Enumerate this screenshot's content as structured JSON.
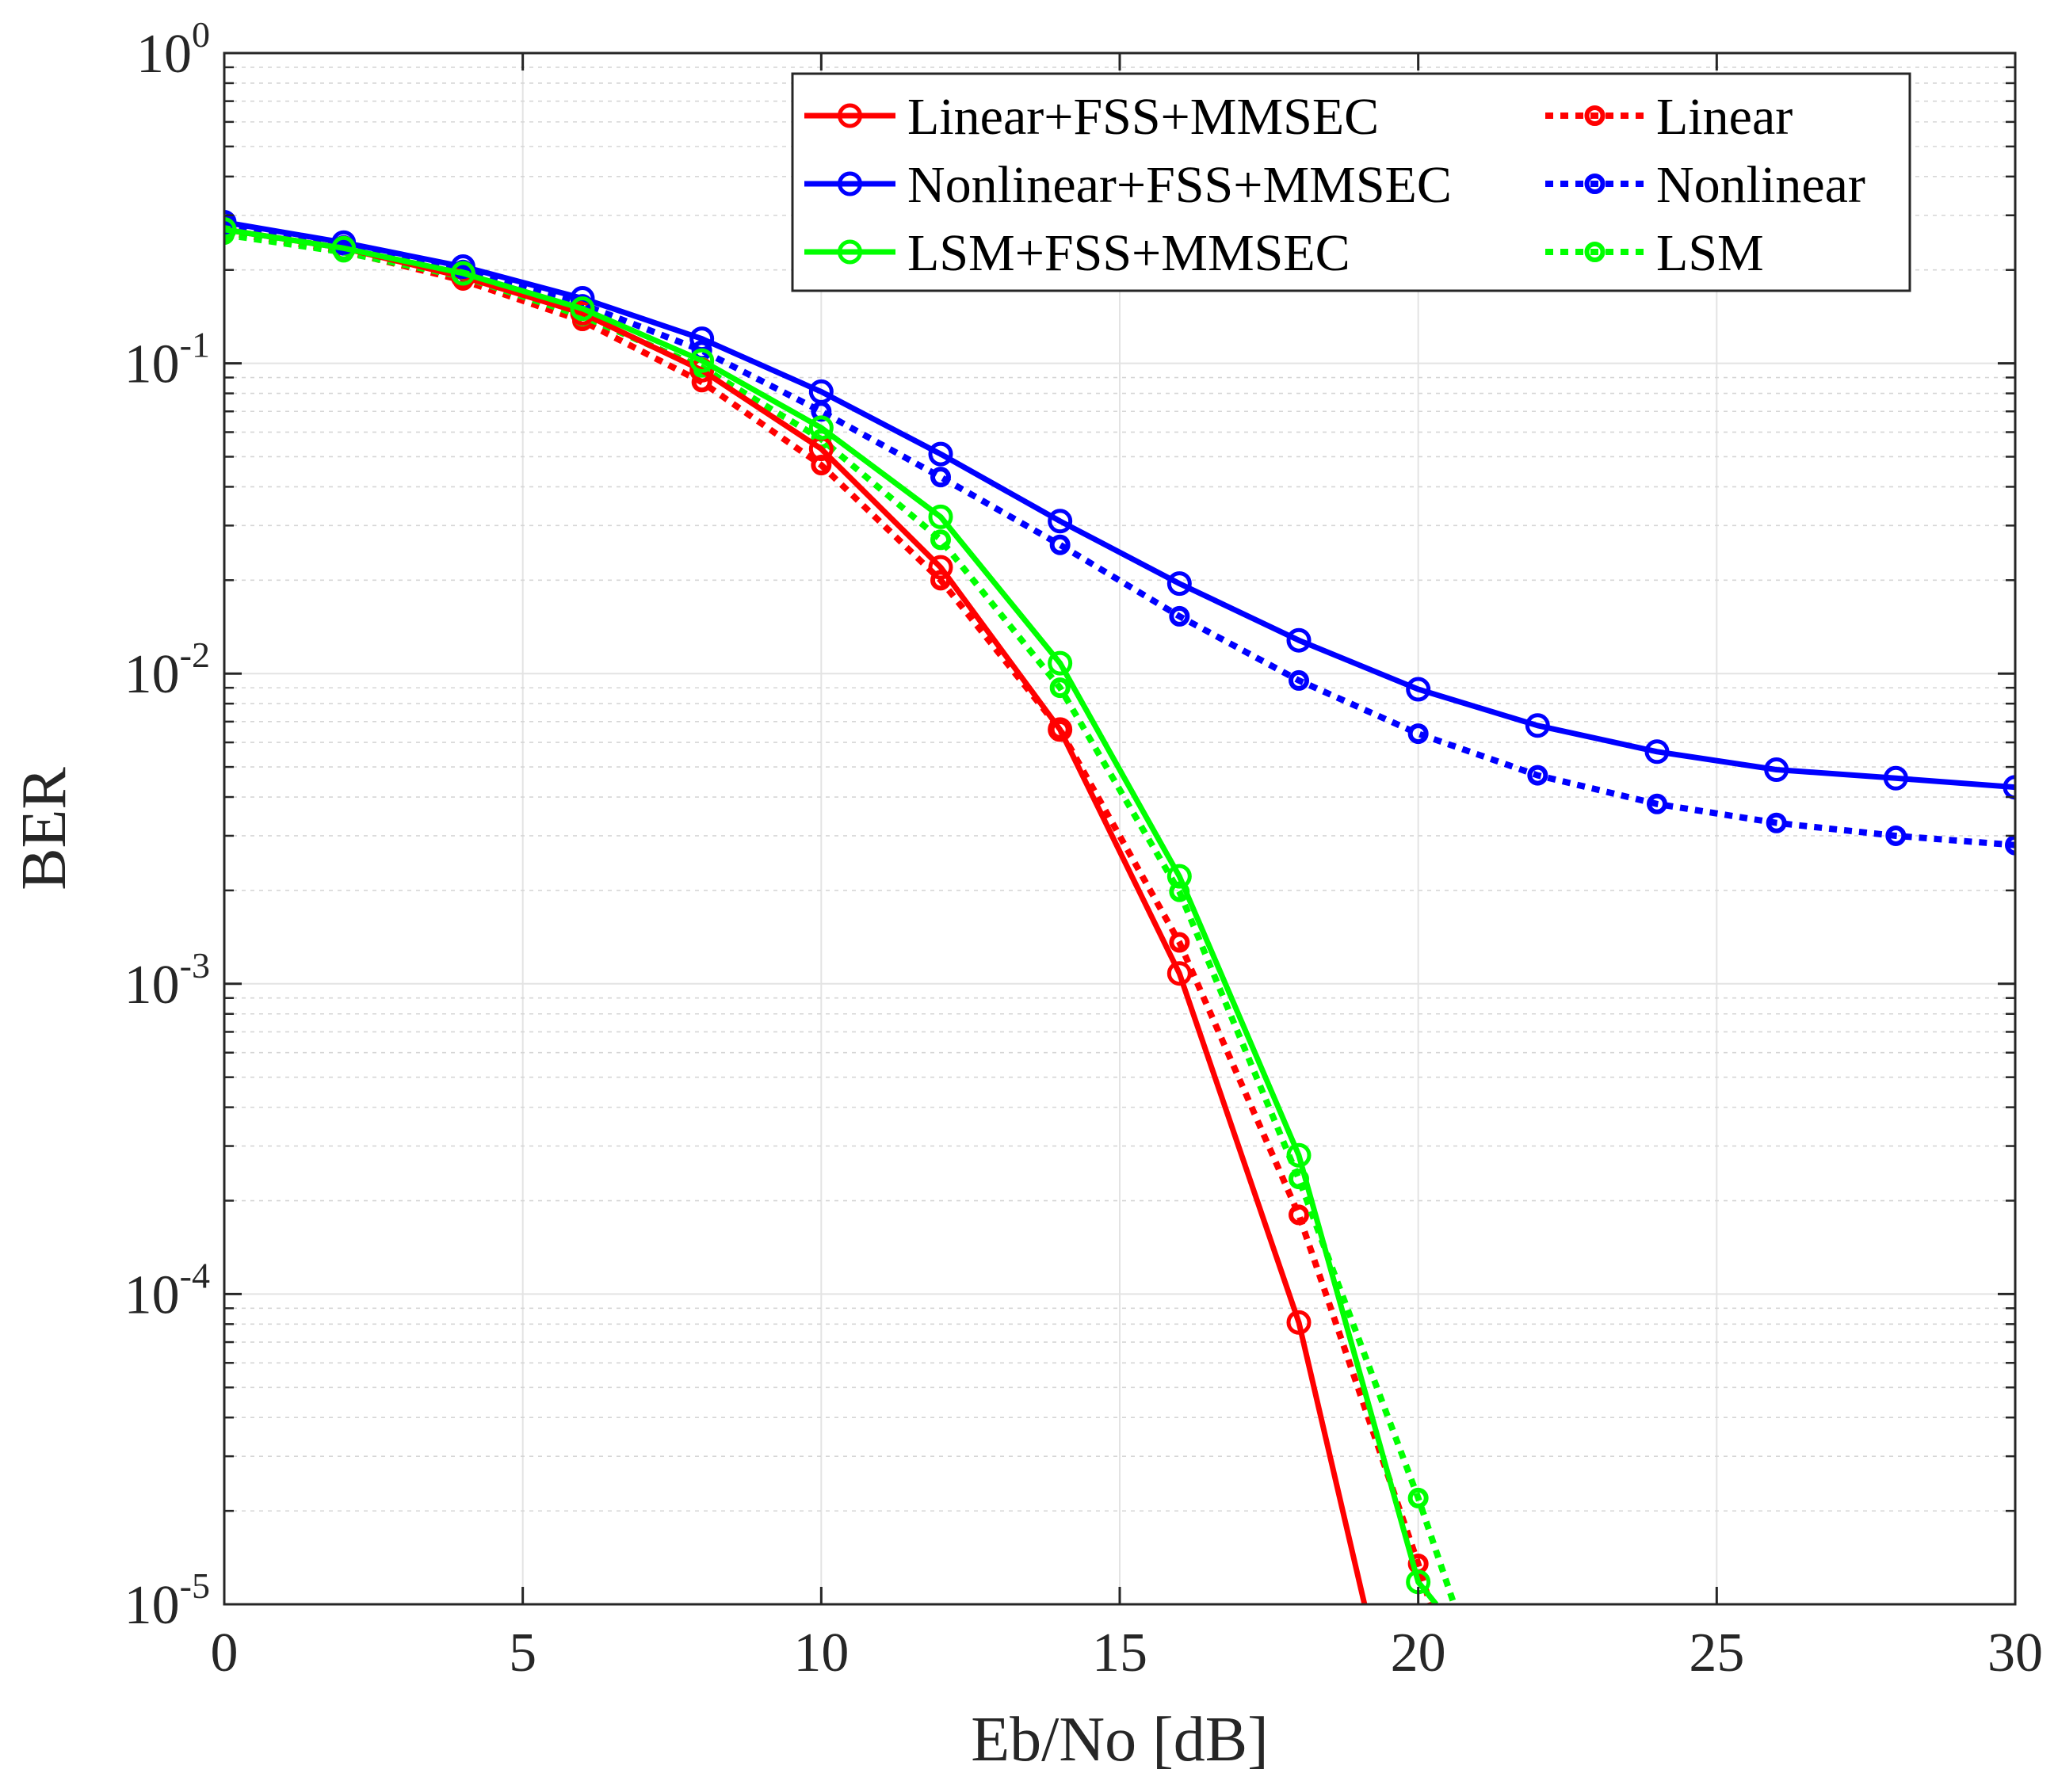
{
  "chart_data": {
    "type": "line",
    "xlabel": "Eb/No [dB]",
    "ylabel": "BER",
    "xlim": [
      0,
      30
    ],
    "ylim": [
      1e-05,
      1
    ],
    "yscale": "log",
    "grid": true,
    "legend_position": "top-right",
    "x_ticks": [
      {
        "value": 0,
        "label": "0"
      },
      {
        "value": 5,
        "label": "5"
      },
      {
        "value": 10,
        "label": "10"
      },
      {
        "value": 15,
        "label": "15"
      },
      {
        "value": 20,
        "label": "20"
      },
      {
        "value": 25,
        "label": "25"
      },
      {
        "value": 30,
        "label": "30"
      }
    ],
    "y_ticks": [
      {
        "value": 1,
        "base": "10",
        "exp": "0"
      },
      {
        "value": 0.1,
        "base": "10",
        "exp": "-1"
      },
      {
        "value": 0.01,
        "base": "10",
        "exp": "-2"
      },
      {
        "value": 0.001,
        "base": "10",
        "exp": "-3"
      },
      {
        "value": 0.0001,
        "base": "10",
        "exp": "-4"
      },
      {
        "value": 1e-05,
        "base": "10",
        "exp": "-5"
      }
    ],
    "series": [
      {
        "name": "Linear+FSS+MMSEC",
        "color": "#ff0000",
        "style": "solid",
        "x": [
          0,
          2,
          4,
          6,
          8,
          10,
          12,
          14,
          16,
          18,
          19.1
        ],
        "y": [
          0.27,
          0.235,
          0.19,
          0.145,
          0.095,
          0.053,
          0.022,
          0.0066,
          0.00108,
          8.1e-05,
          1e-05
        ]
      },
      {
        "name": "Nonlinear+FSS+MMSEC",
        "color": "#0000ff",
        "style": "solid",
        "x": [
          0,
          2,
          4,
          6,
          8,
          10,
          12,
          14,
          16,
          18,
          20,
          22,
          24,
          26,
          28,
          30
        ],
        "y": [
          0.285,
          0.245,
          0.205,
          0.162,
          0.12,
          0.081,
          0.051,
          0.031,
          0.0195,
          0.0128,
          0.0089,
          0.0068,
          0.0056,
          0.0049,
          0.0046,
          0.0043
        ]
      },
      {
        "name": "LSM+FSS+MMSEC",
        "color": "#00ff00",
        "style": "solid",
        "x": [
          0,
          2,
          4,
          6,
          8,
          10,
          12,
          14,
          16,
          18,
          20,
          20.3
        ],
        "y": [
          0.27,
          0.235,
          0.195,
          0.15,
          0.102,
          0.062,
          0.032,
          0.0108,
          0.00222,
          0.00028,
          1.18e-05,
          1e-05
        ]
      },
      {
        "name": "Linear",
        "color": "#ff0000",
        "style": "dotted",
        "x": [
          0,
          2,
          4,
          6,
          8,
          10,
          12,
          14,
          16,
          18,
          20,
          20.2
        ],
        "y": [
          0.265,
          0.23,
          0.185,
          0.137,
          0.087,
          0.047,
          0.02,
          0.0066,
          0.00136,
          0.00018,
          1.35e-05,
          1e-05
        ]
      },
      {
        "name": "Nonlinear",
        "color": "#0000ff",
        "style": "dotted",
        "x": [
          0,
          2,
          4,
          6,
          8,
          10,
          12,
          14,
          16,
          18,
          20,
          22,
          24,
          26,
          28,
          30
        ],
        "y": [
          0.28,
          0.24,
          0.2,
          0.155,
          0.11,
          0.07,
          0.043,
          0.026,
          0.0153,
          0.0095,
          0.0064,
          0.0047,
          0.0038,
          0.0033,
          0.003,
          0.0028
        ]
      },
      {
        "name": "LSM",
        "color": "#00ff00",
        "style": "dotted",
        "x": [
          0,
          2,
          4,
          6,
          8,
          10,
          12,
          14,
          16,
          18,
          20,
          20.6
        ],
        "y": [
          0.26,
          0.228,
          0.19,
          0.142,
          0.097,
          0.057,
          0.027,
          0.009,
          0.00198,
          0.000235,
          2.2e-05,
          1e-05
        ]
      }
    ]
  }
}
